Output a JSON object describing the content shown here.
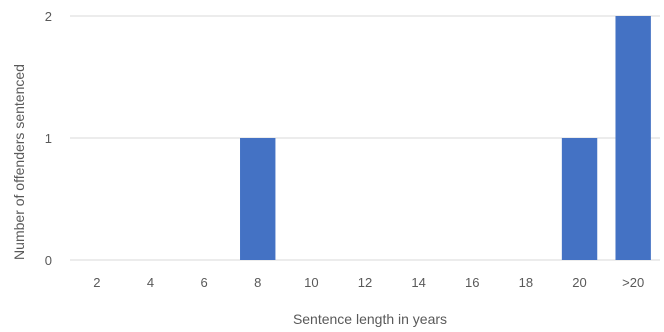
{
  "chart_data": {
    "type": "bar",
    "title": "",
    "xlabel": "Sentence length in years",
    "ylabel": "Number of offenders sentenced",
    "categories": [
      "2",
      "4",
      "6",
      "8",
      "10",
      "12",
      "14",
      "16",
      "18",
      "20",
      ">20"
    ],
    "values": [
      0,
      0,
      0,
      1,
      0,
      0,
      0,
      0,
      0,
      1,
      2
    ],
    "ylim": [
      0,
      2
    ],
    "yticks": [
      "0",
      "1",
      "2"
    ],
    "grid": true,
    "legend": "none",
    "colors": {
      "bar": "#4472C4",
      "grid": "#d9d9d9",
      "text": "#595959"
    }
  }
}
